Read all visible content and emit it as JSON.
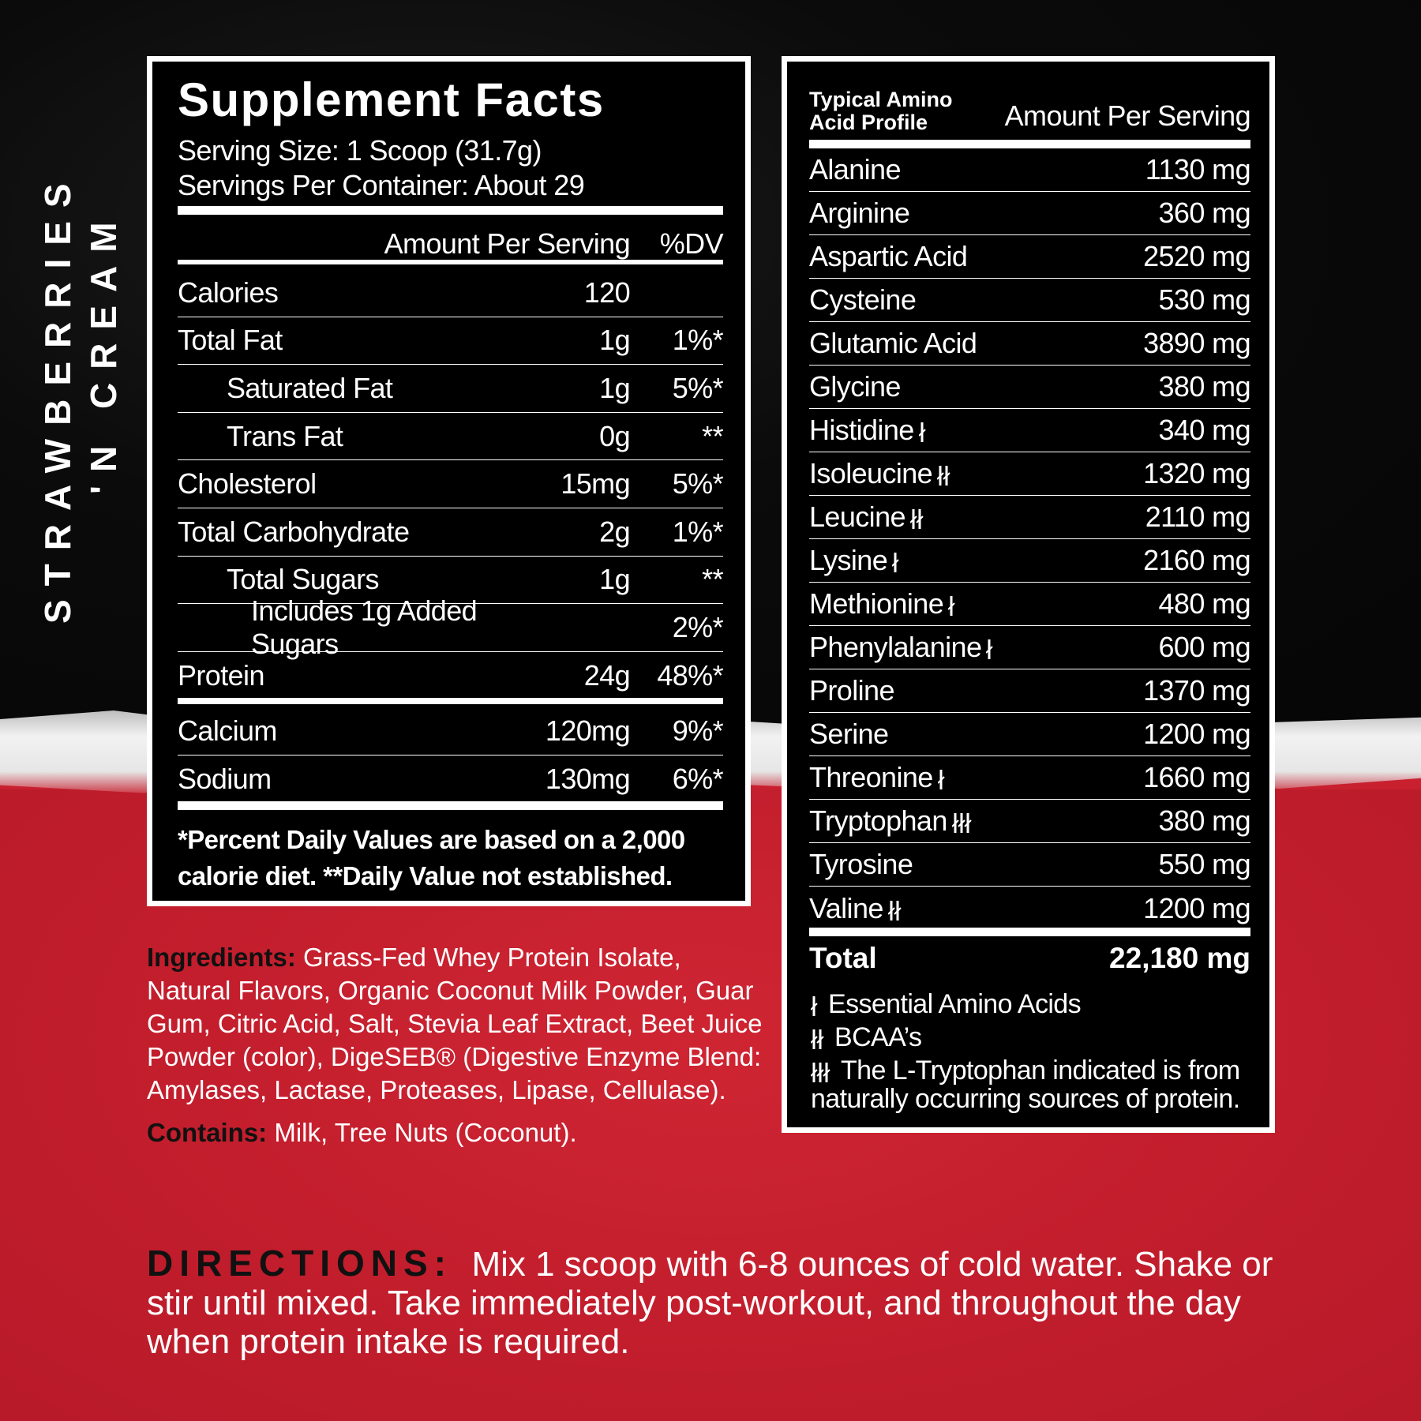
{
  "flavor": {
    "line1": "STRAWBERRIES",
    "line2": "'N CREAM"
  },
  "supplement_facts": {
    "title": "Supplement Facts",
    "serving_size": "Serving Size: 1 Scoop (31.7g)",
    "servings_per_container": "Servings Per Container: About 29",
    "header_amount": "Amount Per Serving",
    "header_dv": "%DV",
    "rows": [
      {
        "label": "Calories",
        "amount": "120",
        "dv": ""
      },
      {
        "label": "Total Fat",
        "amount": "1g",
        "dv": "1%*"
      },
      {
        "label": "Saturated Fat",
        "amount": "1g",
        "dv": "5%*"
      },
      {
        "label": "Trans Fat",
        "amount": "0g",
        "dv": "**"
      },
      {
        "label": "Cholesterol",
        "amount": "15mg",
        "dv": "5%*"
      },
      {
        "label": "Total Carbohydrate",
        "amount": "2g",
        "dv": "1%*"
      },
      {
        "label": "Total Sugars",
        "amount": "1g",
        "dv": "**"
      },
      {
        "label": "Includes 1g Added Sugars",
        "amount": "",
        "dv": "2%*"
      },
      {
        "label": "Protein",
        "amount": "24g",
        "dv": "48%*"
      },
      {
        "label": "Calcium",
        "amount": "120mg",
        "dv": "9%*"
      },
      {
        "label": "Sodium",
        "amount": "130mg",
        "dv": "6%*"
      }
    ],
    "footnote_1": "*Percent Daily Values are based on a 2,000",
    "footnote_2": "calorie diet. **Daily Value not established."
  },
  "amino_profile": {
    "header_line1": "Typical Amino",
    "header_line2": "Acid Profile",
    "header_amount": "Amount Per Serving",
    "rows": [
      {
        "label": "Alanine",
        "amount": "1130 mg",
        "marker": 0
      },
      {
        "label": "Arginine",
        "amount": "360 mg",
        "marker": 0
      },
      {
        "label": "Aspartic Acid",
        "amount": "2520 mg",
        "marker": 0
      },
      {
        "label": "Cysteine",
        "amount": "530 mg",
        "marker": 0
      },
      {
        "label": "Glutamic Acid",
        "amount": "3890 mg",
        "marker": 0
      },
      {
        "label": "Glycine",
        "amount": "380 mg",
        "marker": 0
      },
      {
        "label": "Histidine",
        "amount": "340 mg",
        "marker": 1
      },
      {
        "label": "Isoleucine",
        "amount": "1320 mg",
        "marker": 2
      },
      {
        "label": "Leucine",
        "amount": "2110 mg",
        "marker": 2
      },
      {
        "label": "Lysine",
        "amount": "2160 mg",
        "marker": 1
      },
      {
        "label": "Methionine",
        "amount": "480 mg",
        "marker": 1
      },
      {
        "label": "Phenylalanine",
        "amount": "600 mg",
        "marker": 1
      },
      {
        "label": "Proline",
        "amount": "1370 mg",
        "marker": 0
      },
      {
        "label": "Serine",
        "amount": "1200 mg",
        "marker": 0
      },
      {
        "label": "Threonine",
        "amount": "1660 mg",
        "marker": 1
      },
      {
        "label": "Tryptophan",
        "amount": "380 mg",
        "marker": 3
      },
      {
        "label": "Tyrosine",
        "amount": "550 mg",
        "marker": 0
      },
      {
        "label": "Valine",
        "amount": "1200 mg",
        "marker": 2
      }
    ],
    "total_label": "Total",
    "total_amount": "22,180 mg",
    "legend": [
      {
        "marker": 1,
        "text": "Essential Amino Acids"
      },
      {
        "marker": 2,
        "text": "BCAA’s"
      },
      {
        "marker": 3,
        "text": "The L-Tryptophan indicated is from"
      }
    ],
    "legend_continued": "naturally occurring sources of protein."
  },
  "ingredients": {
    "label": "Ingredients:",
    "text": "Grass-Fed Whey Protein Isolate, Natural Flavors, Organic Coconut Milk Powder, Guar Gum, Citric Acid, Salt, Stevia Leaf Extract, Beet Juice Powder (color), DigeSEB® (Digestive Enzyme Blend: Amylases, Lactase, Proteases, Lipase, Cellulase)."
  },
  "contains": {
    "label": "Contains:",
    "text": "Milk, Tree Nuts (Coconut)."
  },
  "directions": {
    "label": "DIRECTIONS:",
    "text": "Mix 1 scoop with 6-8 ounces of cold water. Shake or stir until mixed. Take immediately post-workout, and throughout the day when protein intake is required."
  },
  "colors": {
    "red": "#c8202f",
    "black": "#000000",
    "white": "#ffffff"
  }
}
